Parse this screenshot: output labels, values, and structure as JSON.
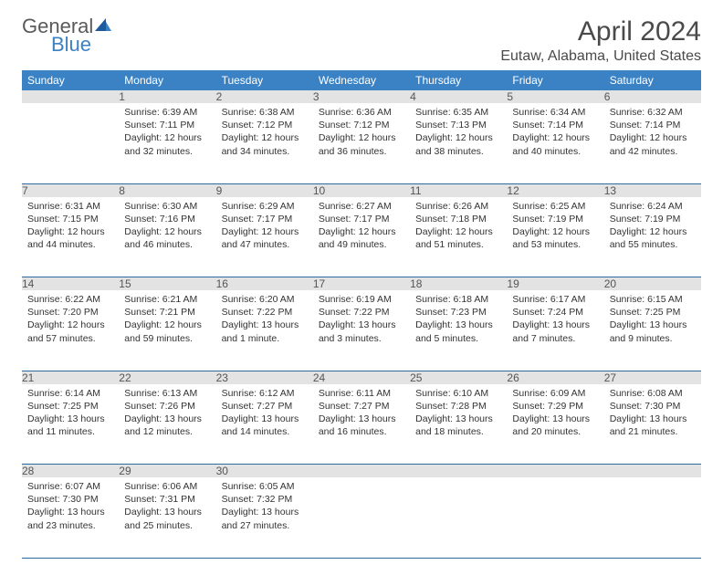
{
  "brand": {
    "general": "General",
    "blue": "Blue"
  },
  "title": "April 2024",
  "location": "Eutaw, Alabama, United States",
  "colors": {
    "header_bg": "#3b82c4",
    "header_text": "#ffffff",
    "daynum_bg": "#e3e3e3",
    "week_divider": "#2f6aa0",
    "logo_blue": "#3b82c4"
  },
  "weekdays": [
    "Sunday",
    "Monday",
    "Tuesday",
    "Wednesday",
    "Thursday",
    "Friday",
    "Saturday"
  ],
  "weeks": [
    [
      {
        "n": "",
        "body": ""
      },
      {
        "n": "1",
        "body": "Sunrise: 6:39 AM\nSunset: 7:11 PM\nDaylight: 12 hours and 32 minutes."
      },
      {
        "n": "2",
        "body": "Sunrise: 6:38 AM\nSunset: 7:12 PM\nDaylight: 12 hours and 34 minutes."
      },
      {
        "n": "3",
        "body": "Sunrise: 6:36 AM\nSunset: 7:12 PM\nDaylight: 12 hours and 36 minutes."
      },
      {
        "n": "4",
        "body": "Sunrise: 6:35 AM\nSunset: 7:13 PM\nDaylight: 12 hours and 38 minutes."
      },
      {
        "n": "5",
        "body": "Sunrise: 6:34 AM\nSunset: 7:14 PM\nDaylight: 12 hours and 40 minutes."
      },
      {
        "n": "6",
        "body": "Sunrise: 6:32 AM\nSunset: 7:14 PM\nDaylight: 12 hours and 42 minutes."
      }
    ],
    [
      {
        "n": "7",
        "body": "Sunrise: 6:31 AM\nSunset: 7:15 PM\nDaylight: 12 hours and 44 minutes."
      },
      {
        "n": "8",
        "body": "Sunrise: 6:30 AM\nSunset: 7:16 PM\nDaylight: 12 hours and 46 minutes."
      },
      {
        "n": "9",
        "body": "Sunrise: 6:29 AM\nSunset: 7:17 PM\nDaylight: 12 hours and 47 minutes."
      },
      {
        "n": "10",
        "body": "Sunrise: 6:27 AM\nSunset: 7:17 PM\nDaylight: 12 hours and 49 minutes."
      },
      {
        "n": "11",
        "body": "Sunrise: 6:26 AM\nSunset: 7:18 PM\nDaylight: 12 hours and 51 minutes."
      },
      {
        "n": "12",
        "body": "Sunrise: 6:25 AM\nSunset: 7:19 PM\nDaylight: 12 hours and 53 minutes."
      },
      {
        "n": "13",
        "body": "Sunrise: 6:24 AM\nSunset: 7:19 PM\nDaylight: 12 hours and 55 minutes."
      }
    ],
    [
      {
        "n": "14",
        "body": "Sunrise: 6:22 AM\nSunset: 7:20 PM\nDaylight: 12 hours and 57 minutes."
      },
      {
        "n": "15",
        "body": "Sunrise: 6:21 AM\nSunset: 7:21 PM\nDaylight: 12 hours and 59 minutes."
      },
      {
        "n": "16",
        "body": "Sunrise: 6:20 AM\nSunset: 7:22 PM\nDaylight: 13 hours and 1 minute."
      },
      {
        "n": "17",
        "body": "Sunrise: 6:19 AM\nSunset: 7:22 PM\nDaylight: 13 hours and 3 minutes."
      },
      {
        "n": "18",
        "body": "Sunrise: 6:18 AM\nSunset: 7:23 PM\nDaylight: 13 hours and 5 minutes."
      },
      {
        "n": "19",
        "body": "Sunrise: 6:17 AM\nSunset: 7:24 PM\nDaylight: 13 hours and 7 minutes."
      },
      {
        "n": "20",
        "body": "Sunrise: 6:15 AM\nSunset: 7:25 PM\nDaylight: 13 hours and 9 minutes."
      }
    ],
    [
      {
        "n": "21",
        "body": "Sunrise: 6:14 AM\nSunset: 7:25 PM\nDaylight: 13 hours and 11 minutes."
      },
      {
        "n": "22",
        "body": "Sunrise: 6:13 AM\nSunset: 7:26 PM\nDaylight: 13 hours and 12 minutes."
      },
      {
        "n": "23",
        "body": "Sunrise: 6:12 AM\nSunset: 7:27 PM\nDaylight: 13 hours and 14 minutes."
      },
      {
        "n": "24",
        "body": "Sunrise: 6:11 AM\nSunset: 7:27 PM\nDaylight: 13 hours and 16 minutes."
      },
      {
        "n": "25",
        "body": "Sunrise: 6:10 AM\nSunset: 7:28 PM\nDaylight: 13 hours and 18 minutes."
      },
      {
        "n": "26",
        "body": "Sunrise: 6:09 AM\nSunset: 7:29 PM\nDaylight: 13 hours and 20 minutes."
      },
      {
        "n": "27",
        "body": "Sunrise: 6:08 AM\nSunset: 7:30 PM\nDaylight: 13 hours and 21 minutes."
      }
    ],
    [
      {
        "n": "28",
        "body": "Sunrise: 6:07 AM\nSunset: 7:30 PM\nDaylight: 13 hours and 23 minutes."
      },
      {
        "n": "29",
        "body": "Sunrise: 6:06 AM\nSunset: 7:31 PM\nDaylight: 13 hours and 25 minutes."
      },
      {
        "n": "30",
        "body": "Sunrise: 6:05 AM\nSunset: 7:32 PM\nDaylight: 13 hours and 27 minutes."
      },
      {
        "n": "",
        "body": ""
      },
      {
        "n": "",
        "body": ""
      },
      {
        "n": "",
        "body": ""
      },
      {
        "n": "",
        "body": ""
      }
    ]
  ]
}
